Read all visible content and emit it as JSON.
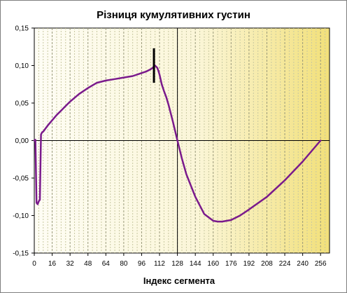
{
  "chart_data": {
    "type": "line",
    "title": "Різниця кумулятивних густин",
    "xlabel": "Індекс сегмента",
    "ylabel": "",
    "xlim": [
      0,
      264
    ],
    "ylim": [
      -0.15,
      0.15
    ],
    "x_ticks": [
      0,
      16,
      32,
      48,
      64,
      80,
      96,
      112,
      128,
      144,
      160,
      176,
      192,
      208,
      224,
      240,
      256
    ],
    "x_tick_labels": [
      "0",
      "16",
      "32",
      "48",
      "64",
      "80",
      "96",
      "112",
      "128",
      "144",
      "160",
      "176",
      "192",
      "208",
      "224",
      "240",
      "256"
    ],
    "y_ticks": [
      0.15,
      0.1,
      0.05,
      0.0,
      -0.05,
      -0.1,
      -0.15
    ],
    "y_tick_labels": [
      "0,15",
      "0,10",
      "0,05",
      "0,00",
      "-0,05",
      "-0,10",
      "-0,15"
    ],
    "grid": true,
    "marker_x": 107,
    "marker_y_range": [
      0.077,
      0.123
    ],
    "vertical_line_x": 128,
    "colors": {
      "line": "#7a1a8c",
      "marker": "#000000",
      "grid_major": "#9a9a7a",
      "grid_minor": "#c8c8a0",
      "axis": "#000000",
      "bg_light": "#fefdf5",
      "bg_dark": "#f2e07a"
    },
    "series": [
      {
        "x": [
          0,
          1,
          2,
          3,
          4,
          5,
          6,
          7,
          8,
          10,
          12,
          16,
          20,
          24,
          28,
          32,
          40,
          48,
          56,
          64,
          72,
          80,
          88,
          96,
          100,
          104,
          106,
          107,
          108,
          110,
          111,
          112,
          114,
          116,
          118,
          120,
          124,
          128,
          132,
          136,
          144,
          152,
          160,
          164,
          168,
          172,
          176,
          184,
          192,
          208,
          224,
          240,
          256
        ],
        "y": [
          0.0,
          0.001,
          -0.083,
          -0.085,
          -0.081,
          -0.079,
          0.008,
          0.011,
          0.012,
          0.016,
          0.02,
          0.027,
          0.034,
          0.04,
          0.046,
          0.052,
          0.062,
          0.07,
          0.077,
          0.08,
          0.082,
          0.084,
          0.086,
          0.09,
          0.092,
          0.095,
          0.097,
          0.099,
          0.1,
          0.097,
          0.093,
          0.088,
          0.075,
          0.066,
          0.058,
          0.048,
          0.025,
          0.0,
          -0.024,
          -0.045,
          -0.075,
          -0.098,
          -0.107,
          -0.108,
          -0.108,
          -0.107,
          -0.106,
          -0.1,
          -0.092,
          -0.075,
          -0.053,
          -0.028,
          0.0
        ]
      }
    ]
  }
}
